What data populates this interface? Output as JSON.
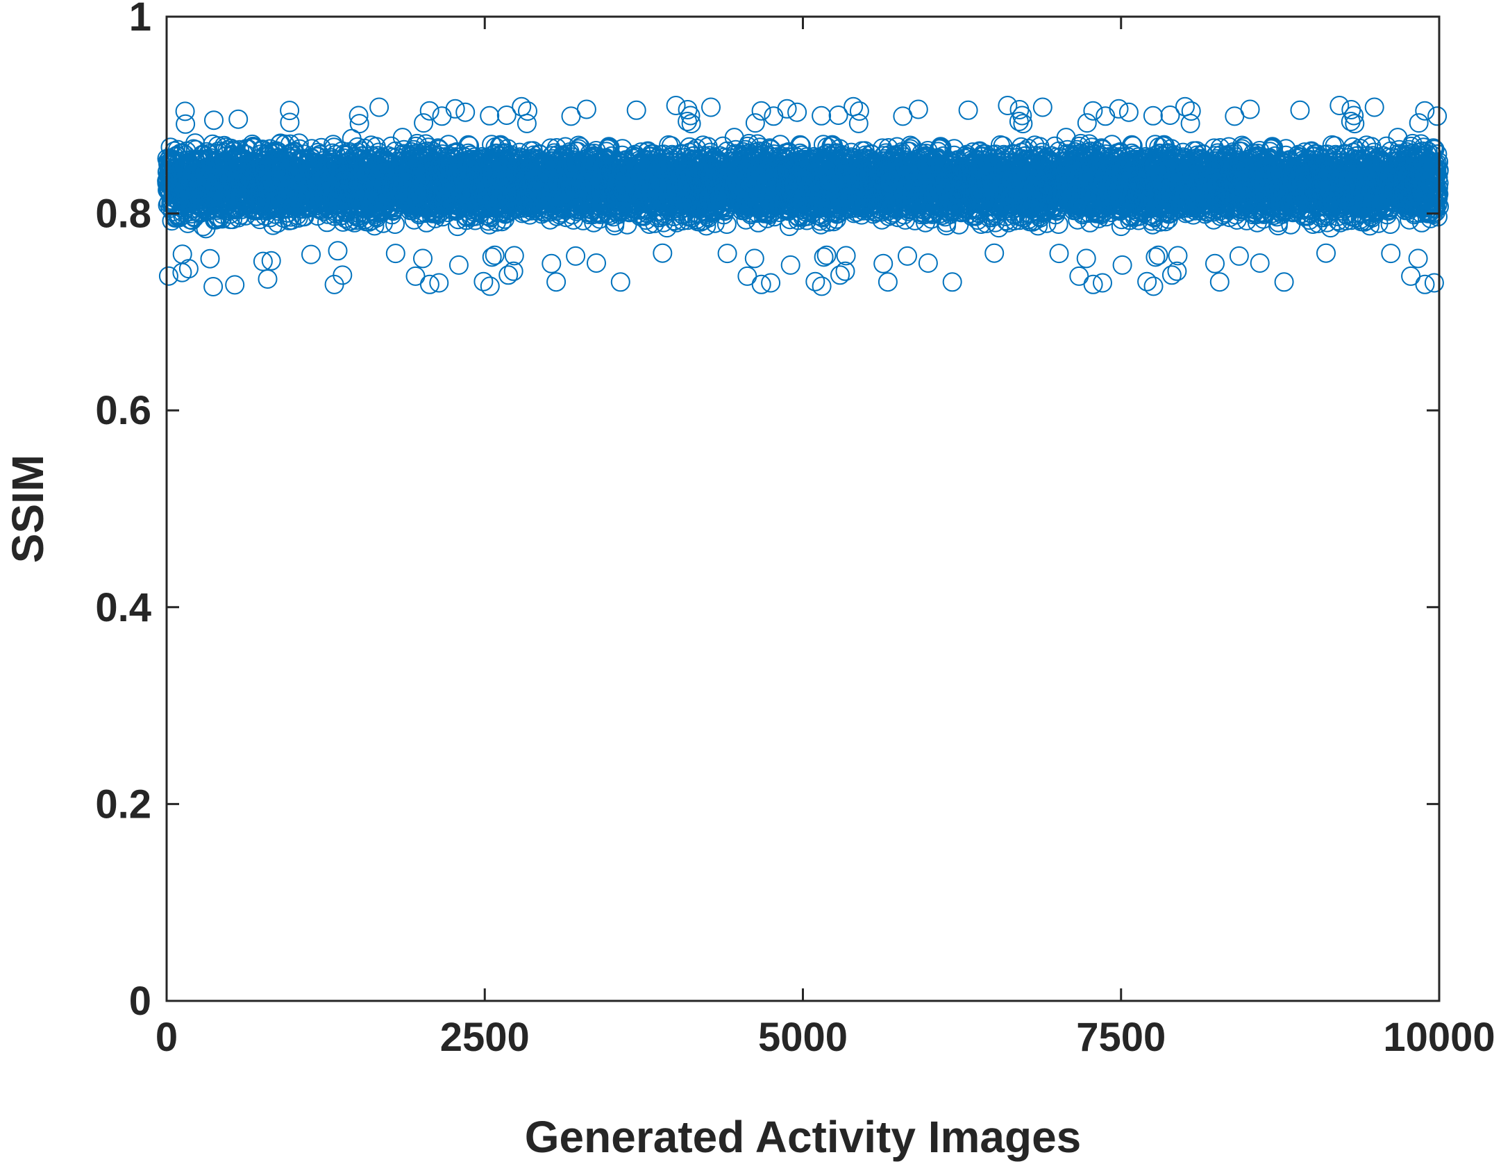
{
  "chart_data": {
    "type": "scatter",
    "title": "",
    "xlabel": "Generated Activity Images",
    "ylabel": "SSIM",
    "xlim": [
      0,
      10000
    ],
    "ylim": [
      0,
      1
    ],
    "xticks": [
      0,
      2500,
      5000,
      7500,
      10000
    ],
    "xtick_labels": [
      "0",
      "2500",
      "5000",
      "7500",
      "10000"
    ],
    "yticks": [
      0,
      0.2,
      0.4,
      0.6,
      0.8,
      1
    ],
    "ytick_labels": [
      "0",
      "0.2",
      "0.4",
      "0.6",
      "0.8",
      "1"
    ],
    "grid": false,
    "legend": "none",
    "marker": "open-circle",
    "series": [
      {
        "color": "#0072BD",
        "n_points": 10000,
        "x_range": [
          1,
          10000
        ],
        "y_typical_range": [
          0.78,
          0.88
        ],
        "y_min_approx": 0.725,
        "y_max_approx": 0.91
      }
    ]
  }
}
